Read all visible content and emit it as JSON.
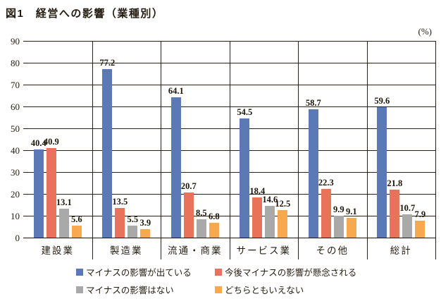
{
  "title": "図1　経営への影響（業種別）",
  "unit_label": "(%)",
  "colors": {
    "line": "#2a2114",
    "text": "#241c10",
    "series_blue": "#5b79b4",
    "series_coral": "#e8735a",
    "series_gray": "#a9a9a9",
    "series_orange": "#f6a94f"
  },
  "chart_data": {
    "type": "bar",
    "title": "図1　経営への影響（業種別）",
    "ylabel": "(%)",
    "xlabel": "",
    "ylim": [
      0,
      90
    ],
    "yticks": [
      0,
      10,
      20,
      30,
      40,
      50,
      60,
      70,
      80,
      90
    ],
    "grid": true,
    "legend_position": "bottom",
    "categories": [
      "建設業",
      "製造業",
      "流通・商業",
      "サービス業",
      "その他",
      "総計"
    ],
    "series": [
      {
        "name": "マイナスの影響が出ている",
        "color": "#5b79b4",
        "values": [
          40.4,
          77.2,
          64.1,
          54.5,
          58.7,
          59.6
        ]
      },
      {
        "name": "今後マイナスの影響が懸念される",
        "color": "#e8735a",
        "values": [
          40.9,
          13.5,
          20.7,
          18.4,
          22.3,
          21.8
        ]
      },
      {
        "name": "マイナスの影響はない",
        "color": "#a9a9a9",
        "values": [
          13.1,
          5.5,
          8.5,
          14.6,
          9.9,
          10.7
        ]
      },
      {
        "name": "どちらともいえない",
        "color": "#f6a94f",
        "values": [
          5.6,
          3.9,
          6.8,
          12.5,
          9.1,
          7.9
        ]
      }
    ]
  }
}
